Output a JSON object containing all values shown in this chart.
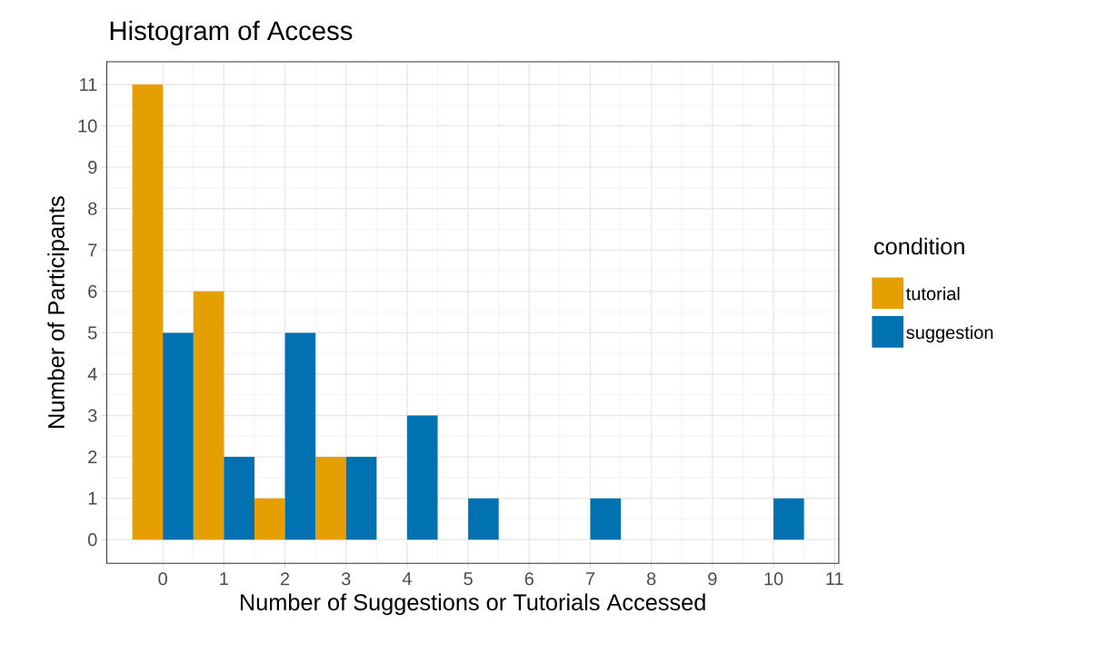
{
  "chart_data": {
    "type": "bar",
    "title": "Histogram of Access",
    "xlabel": "Number of Suggestions or Tutorials Accessed",
    "ylabel": "Number of Participants",
    "legend_title": "condition",
    "x": [
      0,
      1,
      2,
      3,
      4,
      5,
      6,
      7,
      8,
      9,
      10
    ],
    "series": [
      {
        "name": "tutorial",
        "color": "#e69f00",
        "values": [
          11,
          6,
          1,
          2,
          null,
          null,
          null,
          null,
          null,
          null,
          null
        ]
      },
      {
        "name": "suggestion",
        "color": "#0072b2",
        "values": [
          5,
          2,
          5,
          2,
          3,
          1,
          null,
          1,
          null,
          null,
          1
        ]
      }
    ],
    "xlim": [
      -0.92,
      11.07
    ],
    "ylim": [
      -0.57,
      11.55
    ],
    "xticks": [
      0,
      1,
      2,
      3,
      4,
      5,
      6,
      7,
      8,
      9,
      10,
      11
    ],
    "yticks": [
      0,
      1,
      2,
      3,
      4,
      5,
      6,
      7,
      8,
      9,
      10,
      11
    ],
    "grid": true,
    "legend": "right"
  }
}
